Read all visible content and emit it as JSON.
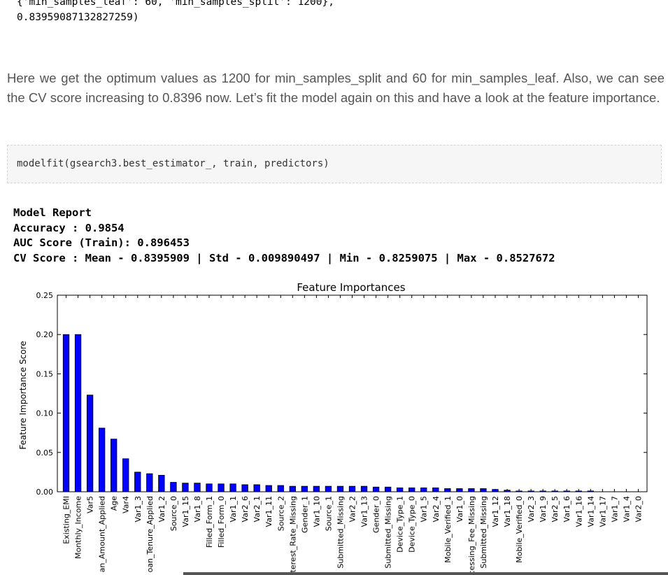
{
  "output_top": {
    "line1": "{'min_samples_leaf': 60, 'min_samples_split': 1200},",
    "line2": "0.83959087132827259)"
  },
  "paragraph": "Here we get the optimum values as 1200 for min_samples_split and 60 for min_samples_leaf. Also, we can see the CV score increasing to 0.8396 now. Let’s fit the model again on this and have a look at the feature importance.",
  "code_cell": "modelfit(gsearch3.best_estimator_, train, predictors)",
  "model_report": {
    "title": "Model Report",
    "accuracy": "Accuracy : 0.9854",
    "auc": "AUC Score (Train): 0.896453",
    "cv": "CV Score : Mean - 0.8395909 | Std - 0.009890497 | Min - 0.8259075 | Max - 0.8527672"
  },
  "chart_data": {
    "type": "bar",
    "title": "Feature Importances",
    "ylabel": "Feature Importance Score",
    "xlabel": "",
    "ylim": [
      0,
      0.25
    ],
    "yticks": [
      "0.25",
      "0.20",
      "0.15",
      "0.10",
      "0.05",
      "0.00"
    ],
    "bar_color": "#0000ff",
    "categories": [
      "Existing_EMI",
      "Monthly_Income",
      "Var5",
      "Loan_Amount_Applied",
      "Age",
      "Var4",
      "Var1_3",
      "Loan_Tenure_Applied",
      "Var1_2",
      "Source_0",
      "Var1_15",
      "Var1_8",
      "Filled_Form_1",
      "Filled_Form_0",
      "Var1_1",
      "Var2_6",
      "Var2_1",
      "Var1_11",
      "Source_2",
      "Interest_Rate_Missing",
      "Gender_1",
      "Var1_10",
      "Source_1",
      "Submitted_Missing",
      "Var2_2",
      "Var1_13",
      "Gender_0",
      "Submitted_Missing",
      "Device_Type_1",
      "Device_Type_0",
      "Var1_5",
      "Var2_4",
      "Mobile_Verified_1",
      "Var1_0",
      "Processing_Fee_Missing",
      "Submitted_Missing",
      "Var1_12",
      "Var1_18",
      "Mobile_Verified_0",
      "Var2_3",
      "Var1_9",
      "Var2_5",
      "Var1_6",
      "Var1_16",
      "Var1_14",
      "Var1_17",
      "Var1_7",
      "Var1_4",
      "Var2_0"
    ],
    "values": [
      0.2,
      0.2,
      0.123,
      0.081,
      0.067,
      0.042,
      0.025,
      0.023,
      0.021,
      0.012,
      0.011,
      0.011,
      0.01,
      0.01,
      0.01,
      0.009,
      0.009,
      0.008,
      0.008,
      0.007,
      0.007,
      0.007,
      0.007,
      0.007,
      0.007,
      0.007,
      0.006,
      0.006,
      0.005,
      0.005,
      0.005,
      0.005,
      0.004,
      0.004,
      0.004,
      0.004,
      0.003,
      0.002,
      0.001,
      0.001,
      0.001,
      0.001,
      0.001,
      0.001,
      0.001,
      0.0,
      0.0,
      0.0,
      0.0
    ]
  }
}
